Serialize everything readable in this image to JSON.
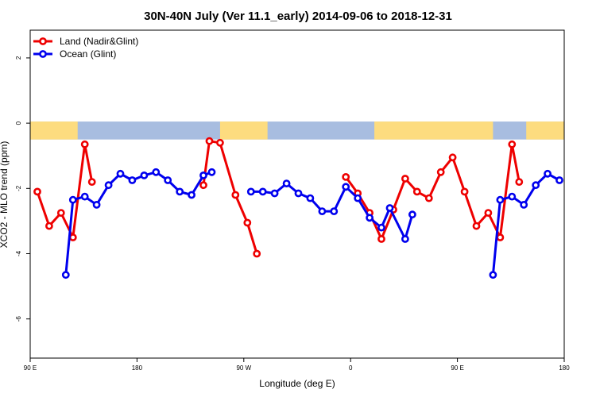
{
  "chart_data": {
    "type": "line",
    "title": "30N-40N July (Ver 11.1_early)   2014-09-06 to 2018-12-31",
    "xlabel": "Longitude (deg E)",
    "ylabel": "XCO2 - MLO trend (ppm)",
    "xlim": [
      90,
      540
    ],
    "ylim": [
      -7.2,
      2.85
    ],
    "x_ticks": [
      {
        "value": 90,
        "label": "90 E"
      },
      {
        "value": 180,
        "label": "180"
      },
      {
        "value": 270,
        "label": "90 W"
      },
      {
        "value": 360,
        "label": "0"
      },
      {
        "value": 450,
        "label": "90 E"
      },
      {
        "value": 540,
        "label": "180"
      }
    ],
    "y_ticks": [
      {
        "value": 2,
        "label": "2"
      },
      {
        "value": 0,
        "label": "0"
      },
      {
        "value": -2,
        "label": "-2"
      },
      {
        "value": -4,
        "label": "-4"
      },
      {
        "value": -6,
        "label": "-6"
      }
    ],
    "land_strip": {
      "ymin": -0.5,
      "ymax": 0.05,
      "land_color": "#fddc7f",
      "ocean_color": "#a8bde0"
    },
    "legend_position": "top-left",
    "series": [
      {
        "name": "Land (Nadir&Glint)",
        "color": "#ee0000",
        "segments": [
          [
            [
              96,
              -2.1
            ],
            [
              106,
              -3.15
            ],
            [
              116,
              -2.75
            ],
            [
              126,
              -3.5
            ],
            [
              136,
              -0.65
            ],
            [
              142,
              -1.8
            ]
          ],
          [
            [
              236,
              -1.9
            ],
            [
              241,
              -0.55
            ],
            [
              250,
              -0.6
            ],
            [
              263,
              -2.2
            ],
            [
              273,
              -3.05
            ],
            [
              281,
              -4.0
            ]
          ],
          [
            [
              356,
              -1.65
            ],
            [
              366,
              -2.15
            ],
            [
              376,
              -2.75
            ],
            [
              386,
              -3.55
            ],
            [
              396,
              -2.65
            ],
            [
              406,
              -1.7
            ],
            [
              416,
              -2.1
            ],
            [
              426,
              -2.3
            ],
            [
              436,
              -1.5
            ],
            [
              446,
              -1.05
            ],
            [
              456,
              -2.1
            ],
            [
              466,
              -3.15
            ],
            [
              476,
              -2.75
            ],
            [
              486,
              -3.5
            ],
            [
              496,
              -0.65
            ],
            [
              502,
              -1.8
            ]
          ]
        ]
      },
      {
        "name": "Ocean (Glint)",
        "color": "#0000ee",
        "segments": [
          [
            [
              120,
              -4.65
            ],
            [
              126,
              -2.35
            ],
            [
              136,
              -2.25
            ],
            [
              146,
              -2.5
            ],
            [
              156,
              -1.9
            ],
            [
              166,
              -1.55
            ],
            [
              176,
              -1.75
            ],
            [
              186,
              -1.6
            ],
            [
              196,
              -1.5
            ],
            [
              206,
              -1.75
            ],
            [
              216,
              -2.1
            ],
            [
              226,
              -2.2
            ],
            [
              236,
              -1.6
            ],
            [
              243,
              -1.5
            ]
          ],
          [
            [
              276,
              -2.1
            ],
            [
              286,
              -2.1
            ],
            [
              296,
              -2.15
            ],
            [
              306,
              -1.85
            ],
            [
              316,
              -2.15
            ],
            [
              326,
              -2.3
            ],
            [
              336,
              -2.7
            ],
            [
              346,
              -2.7
            ],
            [
              356,
              -1.95
            ],
            [
              366,
              -2.3
            ],
            [
              376,
              -2.9
            ],
            [
              386,
              -3.2
            ],
            [
              393,
              -2.6
            ],
            [
              406,
              -3.55
            ],
            [
              412,
              -2.8
            ]
          ],
          [
            [
              480,
              -4.65
            ],
            [
              486,
              -2.35
            ],
            [
              496,
              -2.25
            ],
            [
              506,
              -2.5
            ],
            [
              516,
              -1.9
            ],
            [
              526,
              -1.55
            ],
            [
              536,
              -1.75
            ]
          ]
        ]
      }
    ]
  }
}
